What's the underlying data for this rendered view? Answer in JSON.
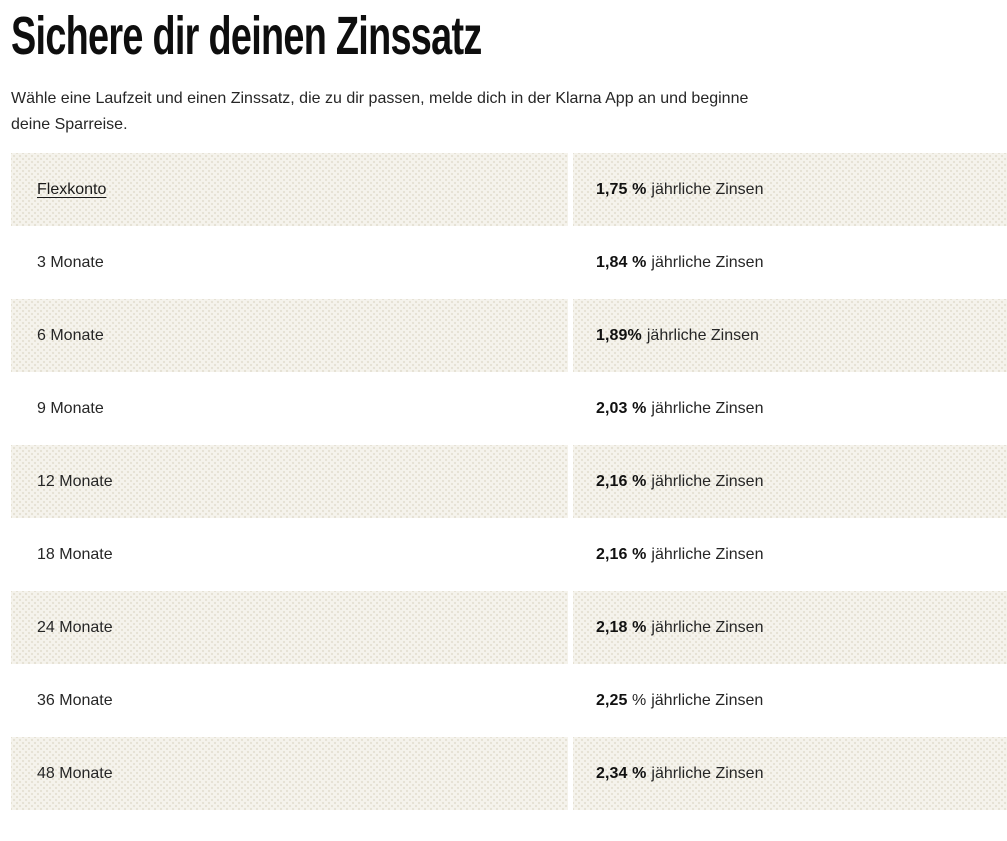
{
  "header": {
    "title": "Sichere dir deinen Zinssatz",
    "subtitle_lines": [
      "Wähle eine Laufzeit und einen Zinssatz, die zu dir passen, melde dich in der Klarna App an und beginne",
      "deine Sparreise."
    ]
  },
  "rates_table": {
    "rows": [
      {
        "term": "Flexkonto",
        "rate": "1,75 %",
        "rate_regular": "",
        "suffix": "jährliche Zinsen"
      },
      {
        "term": "3 Monate",
        "rate": "1,84 %",
        "rate_regular": "",
        "suffix": "jährliche Zinsen"
      },
      {
        "term": "6 Monate",
        "rate": "1,89%",
        "rate_regular": "",
        "suffix": "jährliche Zinsen"
      },
      {
        "term": "9 Monate",
        "rate": "2,03 %",
        "rate_regular": "",
        "suffix": "jährliche Zinsen"
      },
      {
        "term": "12 Monate",
        "rate": "2,16 %",
        "rate_regular": "",
        "suffix": "jährliche Zinsen"
      },
      {
        "term": "18 Monate",
        "rate": "2,16 %",
        "rate_regular": "",
        "suffix": "jährliche Zinsen"
      },
      {
        "term": "24 Monate",
        "rate": "2,18 %",
        "rate_regular": "",
        "suffix": "jährliche Zinsen"
      },
      {
        "term": "36 Monate",
        "rate": "2,25",
        "rate_regular": " %",
        "suffix": "jährliche Zinsen"
      },
      {
        "term": "48 Monate",
        "rate": "2,34 %",
        "rate_regular": "",
        "suffix": "jährliche Zinsen"
      }
    ]
  },
  "colors": {
    "row_alt_background": "#f5f3ec",
    "text": "#262626",
    "heading": "#0e0e0e"
  }
}
